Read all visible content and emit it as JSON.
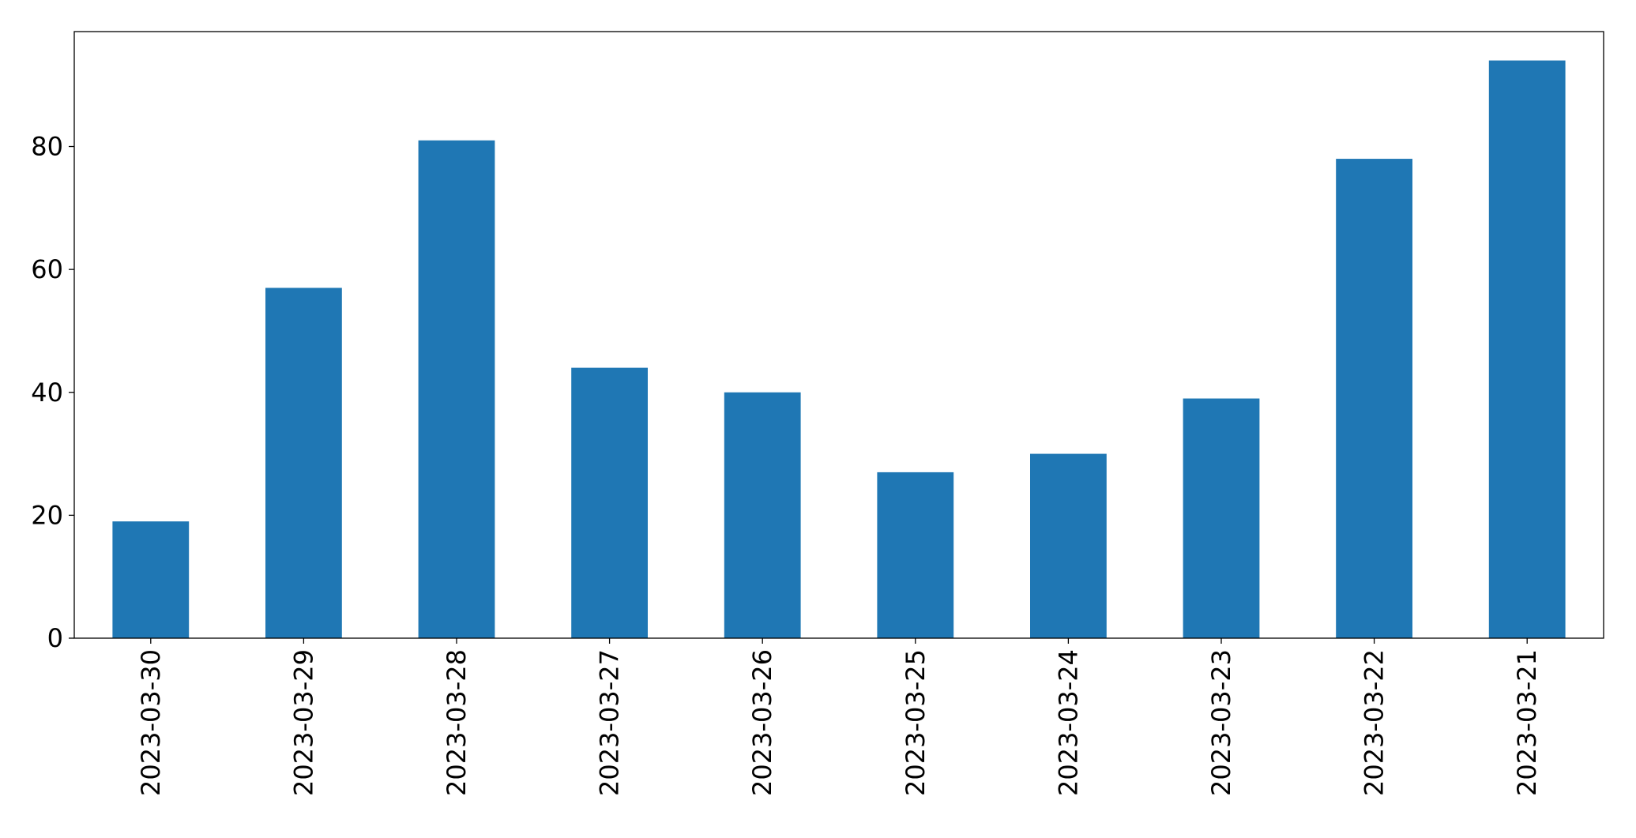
{
  "chart_data": {
    "type": "bar",
    "categories": [
      "2023-03-30",
      "2023-03-29",
      "2023-03-28",
      "2023-03-27",
      "2023-03-26",
      "2023-03-25",
      "2023-03-24",
      "2023-03-23",
      "2023-03-22",
      "2023-03-21"
    ],
    "values": [
      19,
      57,
      81,
      44,
      40,
      27,
      30,
      39,
      78,
      94
    ],
    "color": "#1f77b4",
    "ylim": [
      0,
      98.7
    ],
    "yticks": [
      0,
      20,
      40,
      60,
      80
    ],
    "grid": false
  }
}
